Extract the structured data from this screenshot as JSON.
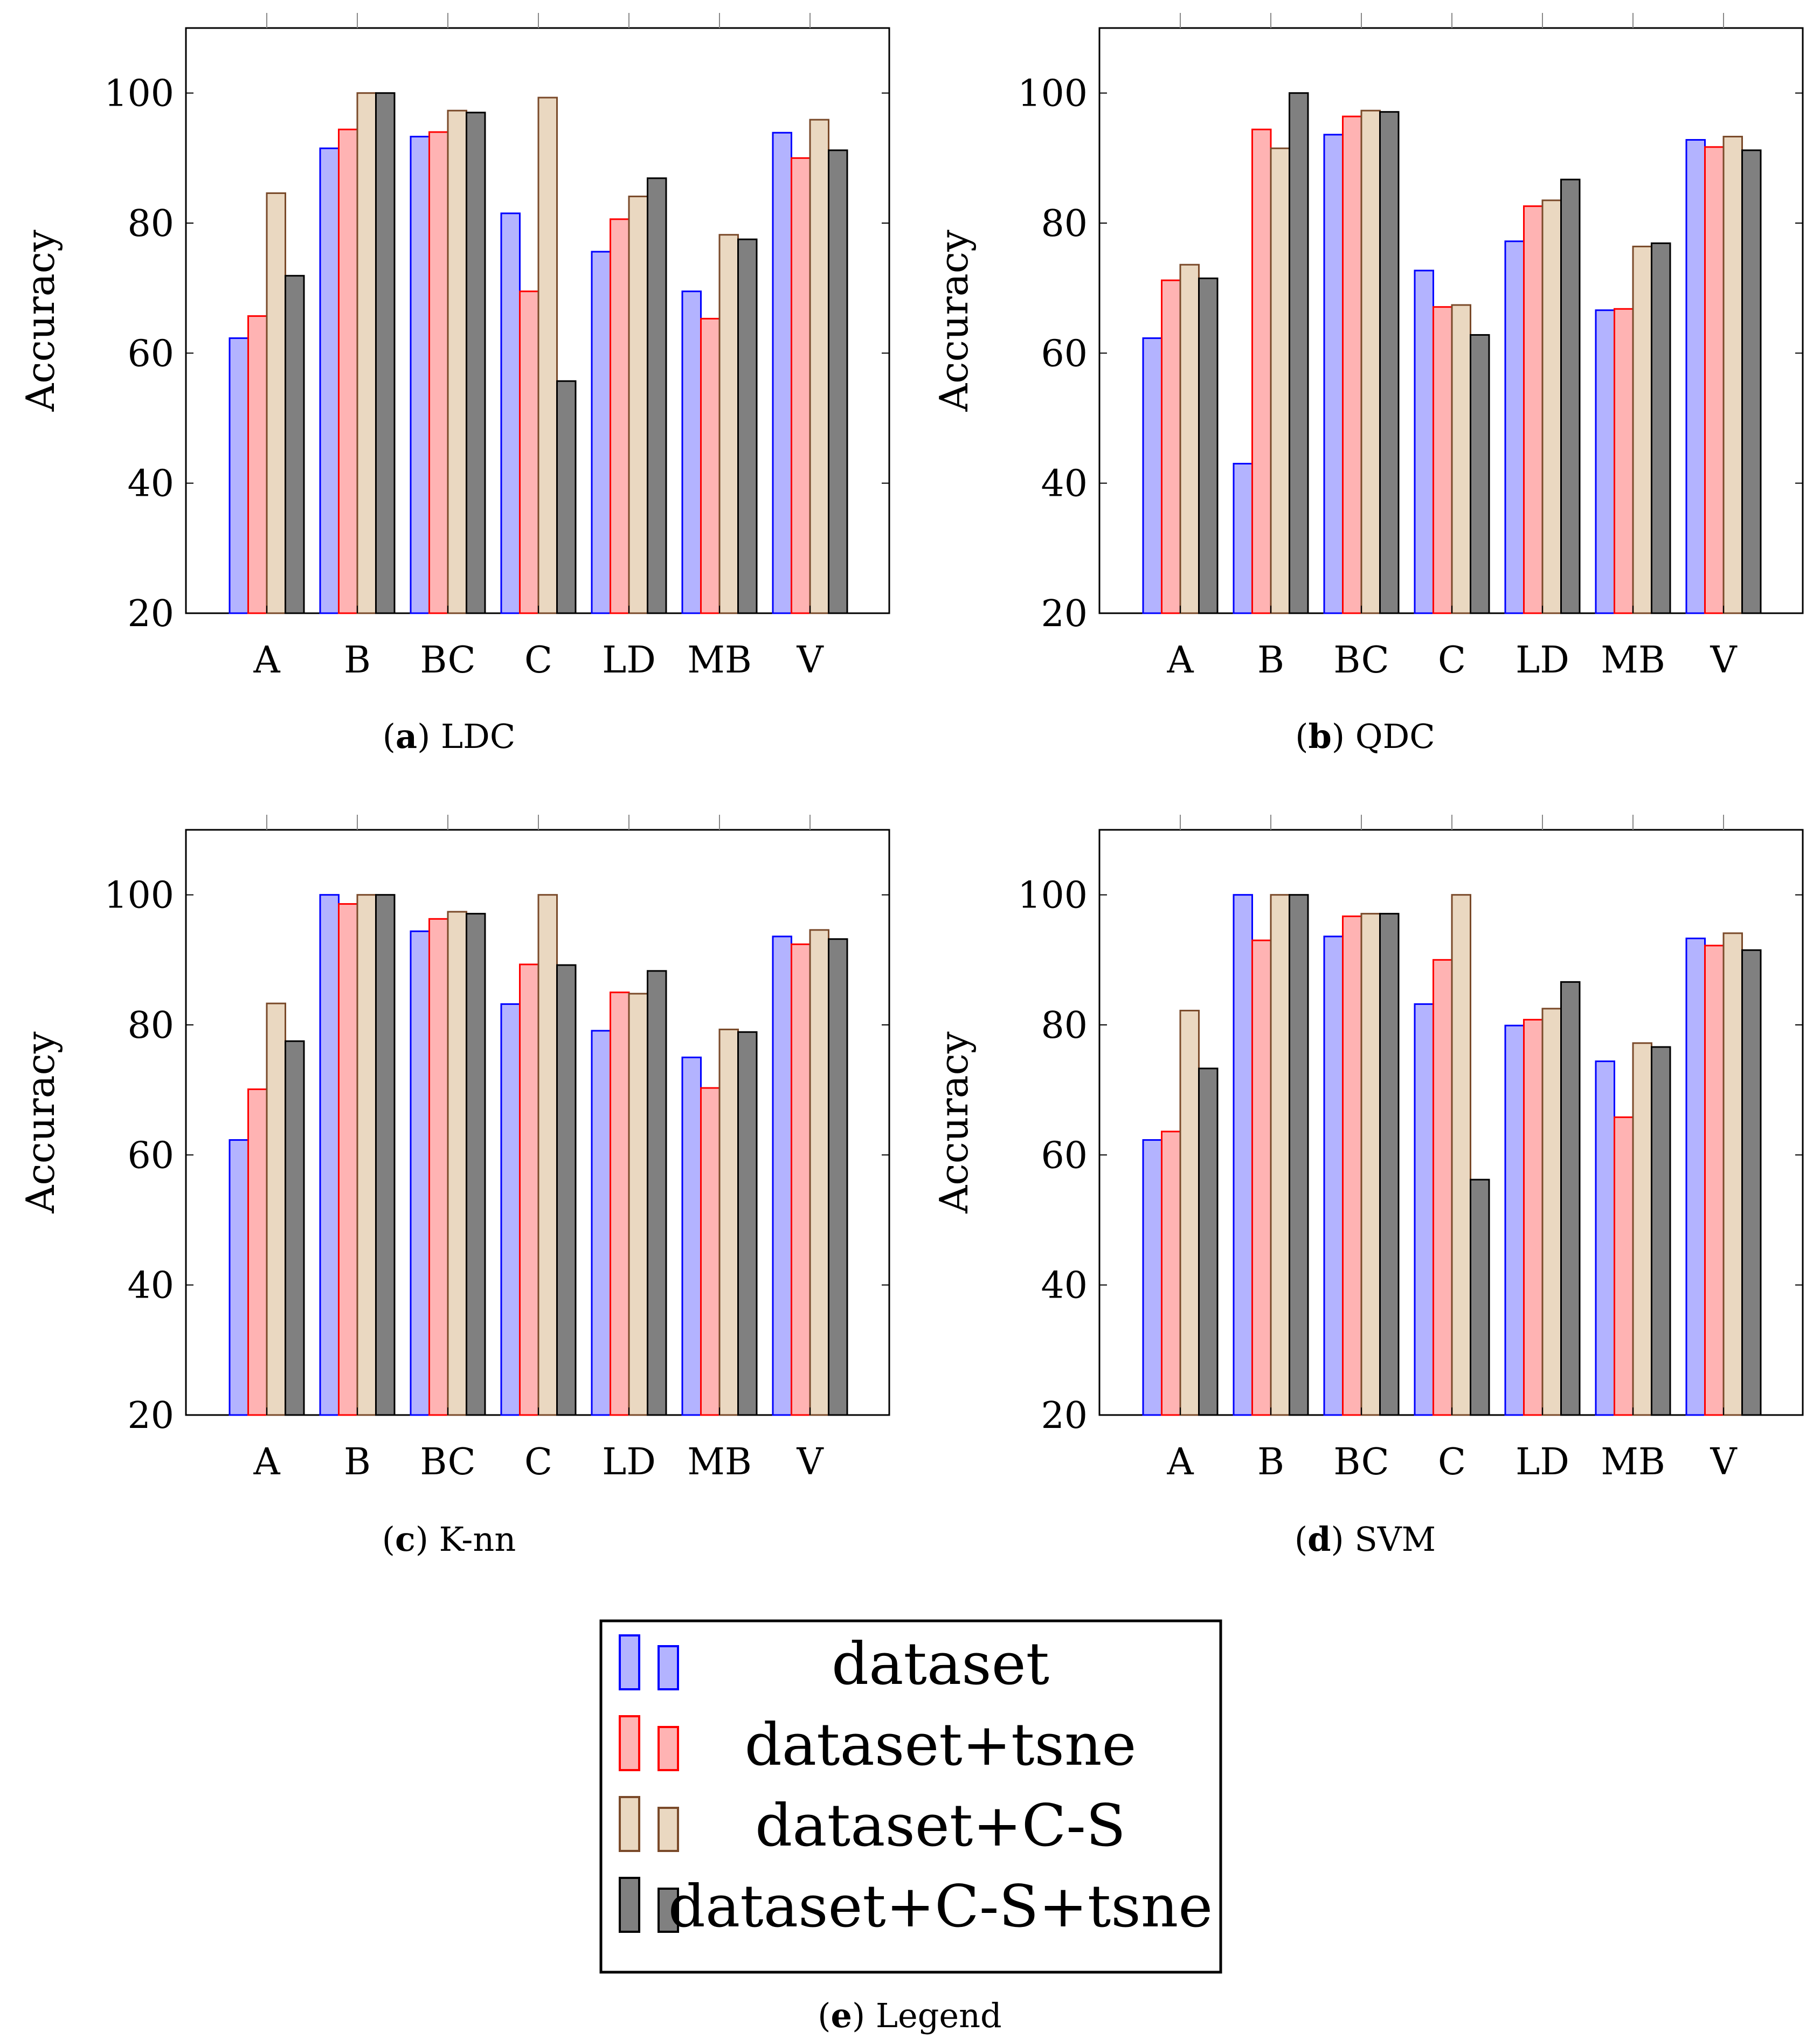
{
  "chart_data": [
    {
      "type": "bar",
      "panel_id": "a",
      "panel_label": "a",
      "caption": "LDC",
      "ylabel": "Accuracy",
      "ylim": [
        20,
        110
      ],
      "yticks": [
        20,
        40,
        60,
        80,
        100
      ],
      "categories": [
        "A",
        "B",
        "BC",
        "C",
        "LD",
        "MB",
        "V"
      ],
      "series": [
        {
          "name": "dataset",
          "values": [
            62.3,
            91.5,
            93.3,
            81.5,
            75.6,
            69.5,
            93.9
          ]
        },
        {
          "name": "dataset+tsne",
          "values": [
            65.7,
            94.4,
            94.0,
            69.5,
            80.6,
            65.3,
            90.0
          ]
        },
        {
          "name": "dataset+C-S",
          "values": [
            84.6,
            100,
            97.3,
            99.3,
            84.1,
            78.2,
            95.9
          ]
        },
        {
          "name": "dataset+C-S+tsne",
          "values": [
            71.9,
            100,
            97.0,
            55.7,
            86.9,
            77.5,
            91.2
          ]
        }
      ]
    },
    {
      "type": "bar",
      "panel_id": "b",
      "panel_label": "b",
      "caption": "QDC",
      "ylabel": "Accuracy",
      "ylim": [
        20,
        110
      ],
      "yticks": [
        20,
        40,
        60,
        80,
        100
      ],
      "categories": [
        "A",
        "B",
        "BC",
        "C",
        "LD",
        "MB",
        "V"
      ],
      "series": [
        {
          "name": "dataset",
          "values": [
            62.3,
            43.0,
            93.6,
            72.7,
            77.2,
            66.6,
            92.8
          ]
        },
        {
          "name": "dataset+tsne",
          "values": [
            71.2,
            94.4,
            96.4,
            67.1,
            82.6,
            66.8,
            91.7
          ]
        },
        {
          "name": "dataset+C-S",
          "values": [
            73.6,
            91.5,
            97.3,
            67.4,
            83.5,
            76.4,
            93.3
          ]
        },
        {
          "name": "dataset+C-S+tsne",
          "values": [
            71.5,
            100,
            97.1,
            62.8,
            86.7,
            76.9,
            91.2
          ]
        }
      ]
    },
    {
      "type": "bar",
      "panel_id": "c",
      "panel_label": "c",
      "caption": "K-nn",
      "ylabel": "Accuracy",
      "ylim": [
        20,
        110
      ],
      "yticks": [
        20,
        40,
        60,
        80,
        100
      ],
      "categories": [
        "A",
        "B",
        "BC",
        "C",
        "LD",
        "MB",
        "V"
      ],
      "series": [
        {
          "name": "dataset",
          "values": [
            62.3,
            100,
            94.4,
            83.2,
            79.1,
            75.0,
            93.6
          ]
        },
        {
          "name": "dataset+tsne",
          "values": [
            70.1,
            98.6,
            96.3,
            89.3,
            85.0,
            70.3,
            92.4
          ]
        },
        {
          "name": "dataset+C-S",
          "values": [
            83.3,
            100,
            97.4,
            100,
            84.8,
            79.3,
            94.6
          ]
        },
        {
          "name": "dataset+C-S+tsne",
          "values": [
            77.5,
            100,
            97.1,
            89.2,
            88.3,
            78.9,
            93.2
          ]
        }
      ]
    },
    {
      "type": "bar",
      "panel_id": "d",
      "panel_label": "d",
      "caption": "SVM",
      "ylabel": "Accuracy",
      "ylim": [
        20,
        110
      ],
      "yticks": [
        20,
        40,
        60,
        80,
        100
      ],
      "categories": [
        "A",
        "B",
        "BC",
        "C",
        "LD",
        "MB",
        "V"
      ],
      "series": [
        {
          "name": "dataset",
          "values": [
            62.3,
            100,
            93.6,
            83.2,
            79.9,
            74.4,
            93.3
          ]
        },
        {
          "name": "dataset+tsne",
          "values": [
            63.6,
            93.0,
            96.7,
            90.0,
            80.8,
            65.8,
            92.2
          ]
        },
        {
          "name": "dataset+C-S",
          "values": [
            82.2,
            100,
            97.1,
            100,
            82.5,
            77.2,
            94.1
          ]
        },
        {
          "name": "dataset+C-S+tsne",
          "values": [
            73.3,
            100,
            97.1,
            56.2,
            86.6,
            76.6,
            91.5
          ]
        }
      ]
    }
  ],
  "legend": {
    "panel_label": "e",
    "caption": "Legend",
    "entries": [
      "dataset",
      "dataset+tsne",
      "dataset+C-S",
      "dataset+C-S+tsne"
    ]
  },
  "series_styles": [
    {
      "fill": "#b3b3ff",
      "stroke": "#0000ff"
    },
    {
      "fill": "#ffb3b3",
      "stroke": "#ff0000"
    },
    {
      "fill": "#ead8c1",
      "stroke": "#7a4a2a"
    },
    {
      "fill": "#808080",
      "stroke": "#000000"
    }
  ]
}
